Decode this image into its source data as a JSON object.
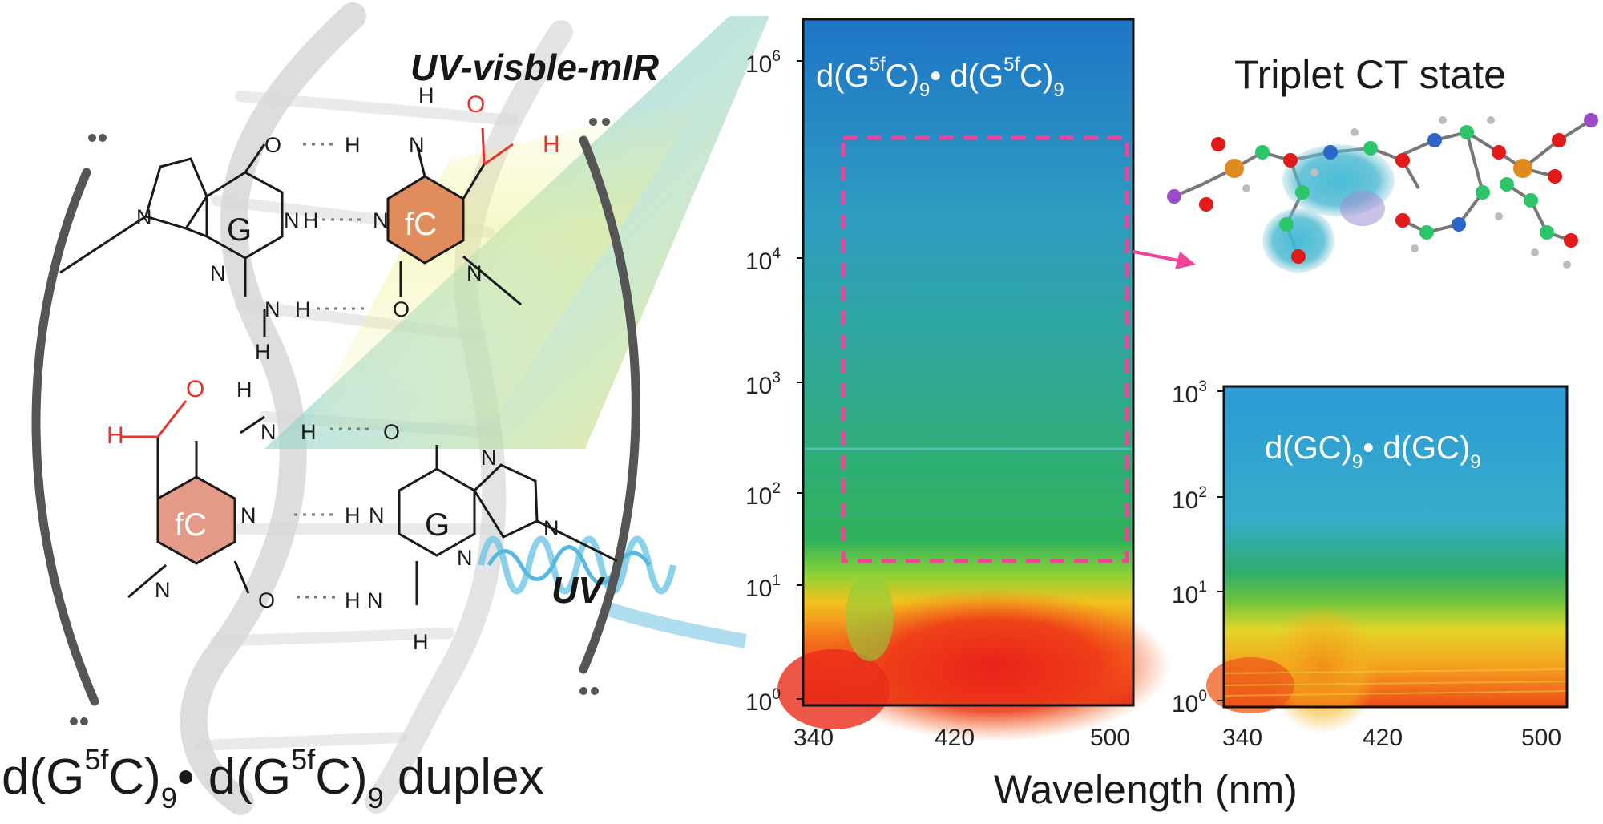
{
  "labels": {
    "beam_top": "UV-visble-mIR",
    "beam_bottom": "UV",
    "ring_g": "G",
    "ring_fc": "fC",
    "atom_h": "H",
    "atom_n": "N",
    "atom_o": "O",
    "duplex_base": "d(G",
    "duplex_sup1": "5f",
    "duplex_c1": "C)",
    "duplex_sub1": "9",
    "duplex_dot": "•",
    "duplex_d2": " d(G",
    "duplex_sup2": "5f",
    "duplex_c2": "C)",
    "duplex_sub2": "9",
    "duplex_word": " duplex",
    "main_plot_d1": "d(G",
    "main_plot_sup1": "5f",
    "main_plot_c1": "C)",
    "main_plot_sub1": "9",
    "main_plot_dot": "•",
    "main_plot_d2": " d(G",
    "main_plot_sup2": "5f",
    "main_plot_c2": "C)",
    "main_plot_sub2": "9",
    "triplet_title": "Triplet CT state",
    "inset_d1": "d(GC)",
    "inset_sub1": "9",
    "inset_dot": "•",
    "inset_d2": " d(GC)",
    "inset_sub2": "9",
    "xlabel": "Wavelength (nm)"
  },
  "main_axis": {
    "y_tick_base": "10",
    "y_tick_exps": [
      "0",
      "1",
      "2",
      "3",
      "4",
      "6"
    ],
    "x_ticks": [
      "340",
      "420",
      "500"
    ]
  },
  "inset_axis": {
    "y_tick_base": "10",
    "y_tick_exps": [
      "0",
      "1",
      "2",
      "3"
    ],
    "x_ticks": [
      "340",
      "420",
      "500"
    ]
  },
  "colors": {
    "fc_ring": "#e08c5c",
    "fc_ring_lower": "#e49a86",
    "formyl_red": "#e8322c",
    "highlight_box": "#f0449a",
    "beam_cyan": "#4ec3e4",
    "beam_yellow": "#e8ea7a"
  }
}
